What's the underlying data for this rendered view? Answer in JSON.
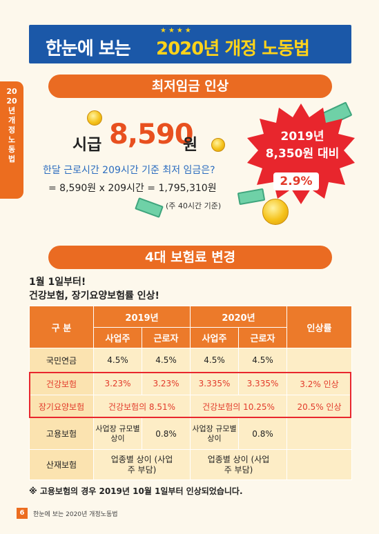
{
  "banner": {
    "stars": "★★★★",
    "title_white": "한눈에 보는",
    "title_yellow": "2020년 개정 노동법"
  },
  "side_tab": "2020년개정노동법",
  "section1": {
    "title": "최저임금 인상",
    "wage_label": "시급",
    "wage_value": "8,590",
    "wage_unit": "원",
    "question": "한달 근로시간 209시간 기준 최저 임금은?",
    "calculation": "= 8,590원 x 209시간 = 1,795,310원",
    "note": "(주 40시간 기준)",
    "burst": {
      "line1": "2019년",
      "line2": "8,350원 대비",
      "percent": "2.9%"
    }
  },
  "section2": {
    "title": "4대 보험료 변경",
    "intro_line1": "1월 1일부터!",
    "intro_line2": "건강보험, 장기요양보험률 인상!",
    "table": {
      "header_category": "구 분",
      "header_2019": "2019년",
      "header_2020": "2020년",
      "header_rate": "인상률",
      "sub_employer": "사업주",
      "sub_worker": "근로자",
      "rows": {
        "pension": {
          "label": "국민연금",
          "e19": "4.5%",
          "w19": "4.5%",
          "e20": "4.5%",
          "w20": "4.5%",
          "rate": ""
        },
        "health": {
          "label": "건강보험",
          "e19": "3.23%",
          "w19": "3.23%",
          "e20": "3.335%",
          "w20": "3.335%",
          "rate": "3.2% 인상"
        },
        "ltc": {
          "label": "장기요양보험",
          "v19": "건강보험의 8.51%",
          "v20": "건강보험의 10.25%",
          "rate": "20.5% 인상"
        },
        "employment": {
          "label": "고용보험",
          "e19": "사업장 규모별 상이",
          "w19": "0.8%",
          "e20": "사업장 규모별 상이",
          "w20": "0.8%",
          "rate": ""
        },
        "industrial": {
          "label": "산재보험",
          "v19": "업종별 상이 (사업주 부담)",
          "v20": "업종별 상이 (사업주 부담)",
          "rate": ""
        }
      }
    },
    "footnote": "※ 고용보험의 경우 2019년 10월 1일부터 인상되었습니다."
  },
  "footer": {
    "page_number": "6",
    "page_title": "한눈에 보는 2020년 개정노동법"
  },
  "colors": {
    "banner_blue": "#1b58a8",
    "accent_orange": "#ea6b22",
    "highlight_red": "#e23a2a",
    "title_yellow": "#ffd31a"
  }
}
